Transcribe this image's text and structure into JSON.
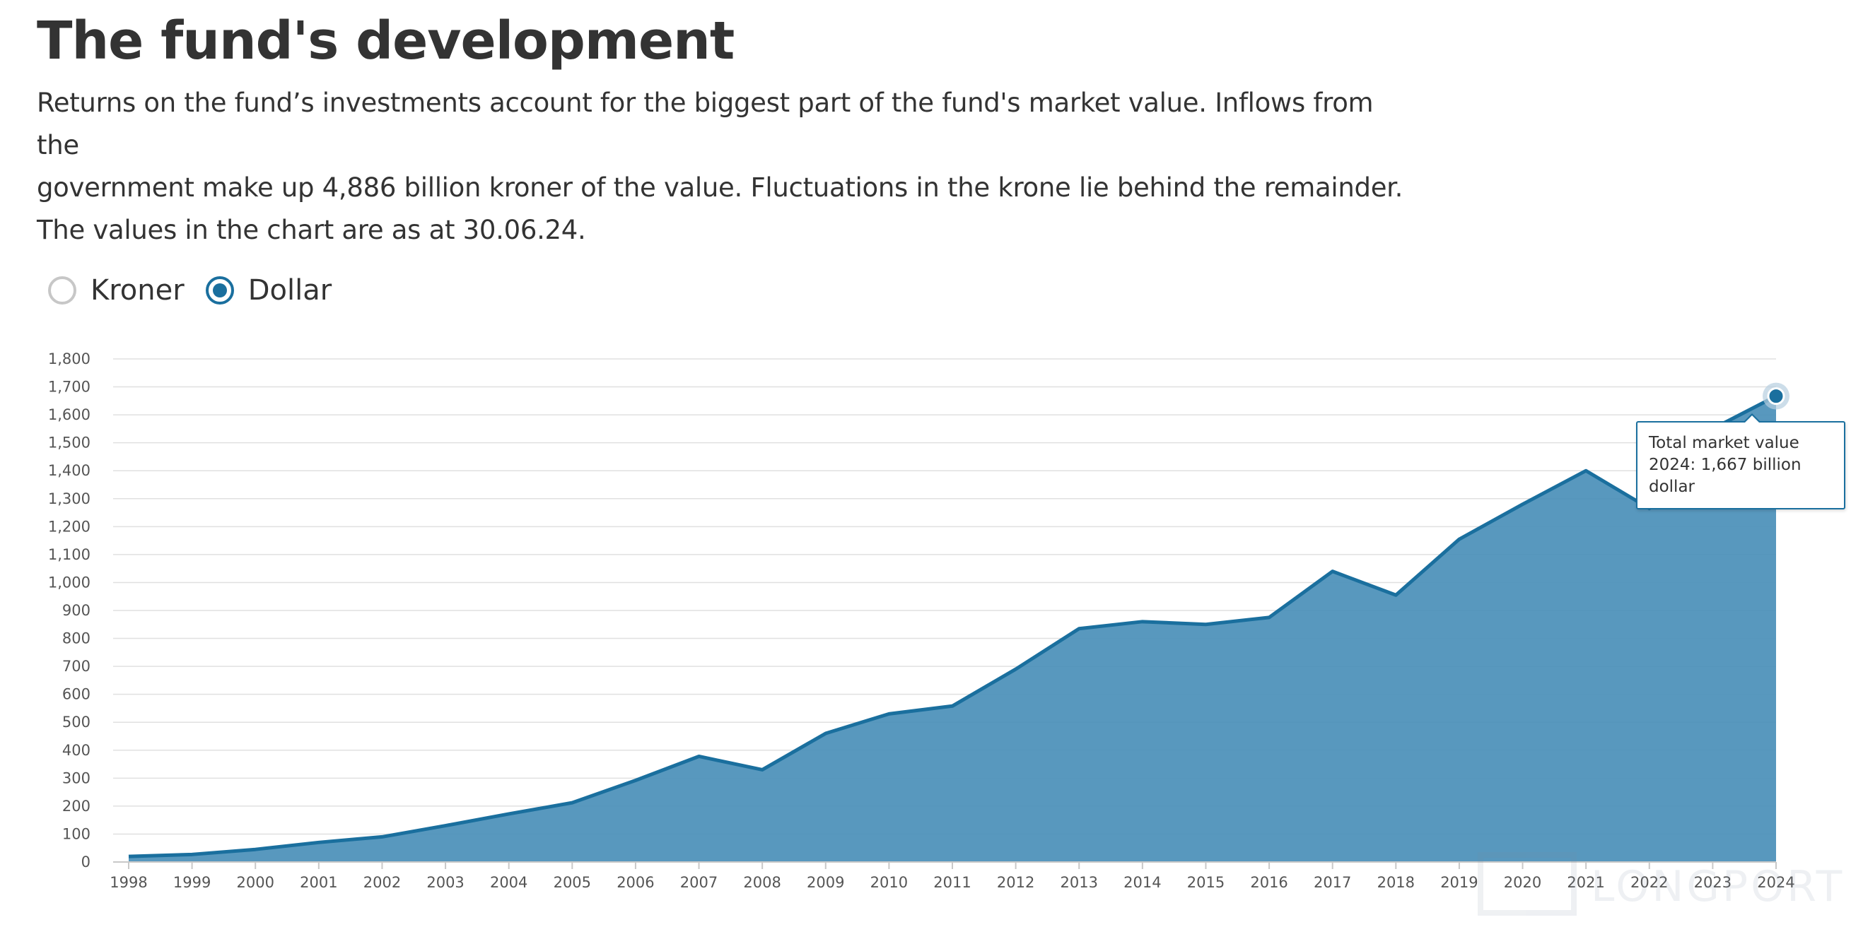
{
  "header": {
    "title": "The fund's development",
    "intro_lines": [
      "Returns on the fund’s investments account for the biggest part of the fund's market value. Inflows from the",
      "government make up 4,886 billion kroner of the value. Fluctuations in the krone lie behind the remainder.",
      "The values in the chart are as at 30.06.24."
    ]
  },
  "currency_toggle": {
    "options": [
      {
        "label": "Kroner",
        "selected": false
      },
      {
        "label": "Dollar",
        "selected": true
      }
    ]
  },
  "tooltip": {
    "line1": "Total market value",
    "line2": "2024: 1,667 billion dollar"
  },
  "watermark": {
    "text": "LONGPORT"
  },
  "colors": {
    "accent": "#1a6f9e",
    "area_fill": "#4a8fb8",
    "gridline": "#e0e0e0"
  },
  "chart_data": {
    "type": "area",
    "title": "",
    "xlabel": "",
    "ylabel": "",
    "ylim": [
      0,
      1800
    ],
    "y_ticks": [
      0,
      100,
      200,
      300,
      400,
      500,
      600,
      700,
      800,
      900,
      1000,
      1100,
      1200,
      1300,
      1400,
      1500,
      1600,
      1700,
      1800
    ],
    "y_tick_labels": [
      "0",
      "100",
      "200",
      "300",
      "400",
      "500",
      "600",
      "700",
      "800",
      "900",
      "1,000",
      "1,100",
      "1,200",
      "1,300",
      "1,400",
      "1,500",
      "1,600",
      "1,700",
      "1,800"
    ],
    "grid": true,
    "legend": "none",
    "highlight_index": 26,
    "x": [
      "1998",
      "1999",
      "2000",
      "2001",
      "2002",
      "2003",
      "2004",
      "2005",
      "2006",
      "2007",
      "2008",
      "2009",
      "2010",
      "2011",
      "2012",
      "2013",
      "2014",
      "2015",
      "2016",
      "2017",
      "2018",
      "2019",
      "2020",
      "2021",
      "2022",
      "2023",
      "2024"
    ],
    "series": [
      {
        "values": [
          20,
          27,
          45,
          70,
          90,
          130,
          172,
          212,
          292,
          378,
          330,
          460,
          530,
          558,
          690,
          835,
          860,
          850,
          875,
          1040,
          955,
          1155,
          1280,
          1400,
          1265,
          1550,
          1667
        ]
      }
    ]
  }
}
